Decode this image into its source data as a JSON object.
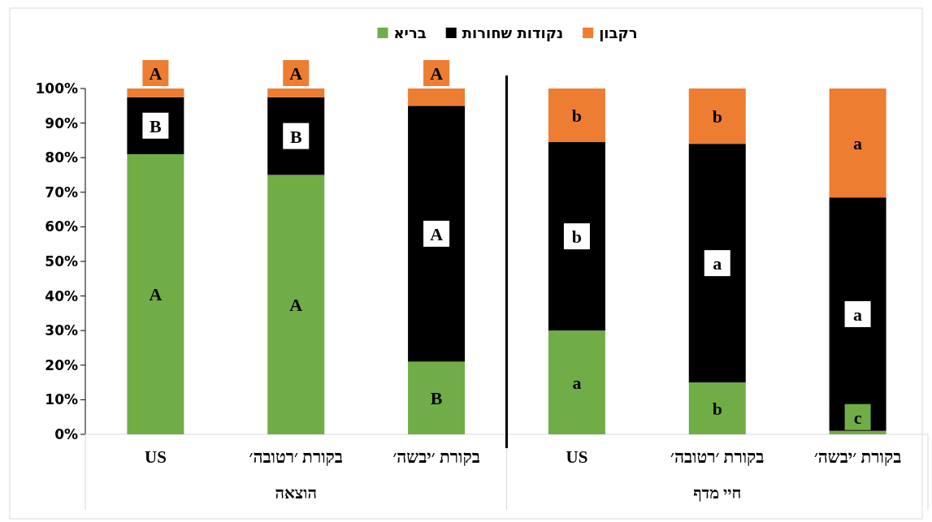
{
  "chart_data": {
    "type": "bar",
    "stacked": true,
    "legend": "top",
    "categories": [
      "US",
      "בקורת ׳רטובה׳",
      "בקורת ׳יבשה׳",
      "US",
      "בקורת ׳רטובה׳",
      "בקורת ׳יבשה׳"
    ],
    "series": [
      {
        "name": "בריא",
        "color": "#70ad47",
        "values": [
          81,
          75,
          21,
          30,
          15,
          1
        ],
        "value_labels": [
          "A",
          "A",
          "B",
          "a",
          "b",
          "c"
        ]
      },
      {
        "name": "נקודות שחורות",
        "color": "#000000",
        "values": [
          16.5,
          22.5,
          74,
          54.5,
          69,
          67.5
        ],
        "value_labels": [
          "B",
          "B",
          "A",
          "b",
          "a",
          "a"
        ]
      },
      {
        "name": "רקבון",
        "color": "#ed7d31",
        "values": [
          2.5,
          2.5,
          5,
          15.5,
          16,
          31.5
        ],
        "value_labels": [
          "A",
          "A",
          "A",
          "b",
          "b",
          "a"
        ]
      }
    ],
    "ylim": [
      0,
      100
    ],
    "yticks": [
      {
        "value": 0,
        "label": "0%"
      },
      {
        "value": 10,
        "label": "10%"
      },
      {
        "value": 20,
        "label": "20%"
      },
      {
        "value": 30,
        "label": "30%"
      },
      {
        "value": 40,
        "label": "40%"
      },
      {
        "value": 50,
        "label": "50%"
      },
      {
        "value": 60,
        "label": "60%"
      },
      {
        "value": 70,
        "label": "70%"
      },
      {
        "value": 80,
        "label": "80%"
      },
      {
        "value": 90,
        "label": "90%"
      },
      {
        "value": 100,
        "label": "100%"
      }
    ],
    "annotations": [
      "הוצאה",
      "חיי מדף"
    ],
    "grid": false
  }
}
